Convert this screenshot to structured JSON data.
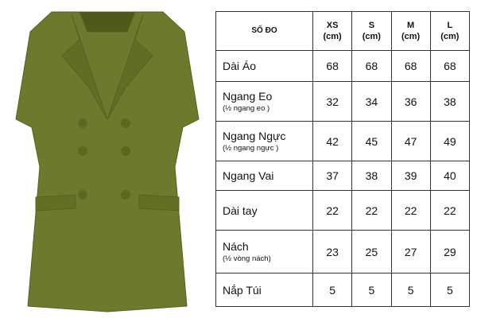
{
  "product": {
    "color": "#6b7a2c",
    "image": "olive-double-breasted-blazer"
  },
  "table": {
    "headers": [
      {
        "label": "SỐ ĐO",
        "unit": ""
      },
      {
        "label": "XS",
        "unit": "(cm)"
      },
      {
        "label": "S",
        "unit": "(cm)"
      },
      {
        "label": "M",
        "unit": "(cm)"
      },
      {
        "label": "L",
        "unit": "(cm)"
      }
    ],
    "rows": [
      {
        "name": "Dài Áo",
        "note": "",
        "values": [
          "68",
          "68",
          "68",
          "68"
        ]
      },
      {
        "name": "Ngang Eo",
        "note": "(½ ngang eo )",
        "values": [
          "32",
          "34",
          "36",
          "38"
        ]
      },
      {
        "name": "Ngang Ngực",
        "note": "(½ ngang ngực )",
        "values": [
          "42",
          "45",
          "47",
          "49"
        ]
      },
      {
        "name": "Ngang Vai",
        "note": "",
        "values": [
          "37",
          "38",
          "39",
          "40"
        ]
      },
      {
        "name": "Dài tay",
        "note": "",
        "values": [
          "22",
          "22",
          "22",
          "22"
        ]
      },
      {
        "name": "Nách",
        "note": "(½ vòng nách)",
        "values": [
          "23",
          "25",
          "27",
          "29"
        ]
      },
      {
        "name": "Nắp Túi",
        "note": "",
        "values": [
          "5",
          "5",
          "5",
          "5"
        ]
      }
    ]
  }
}
